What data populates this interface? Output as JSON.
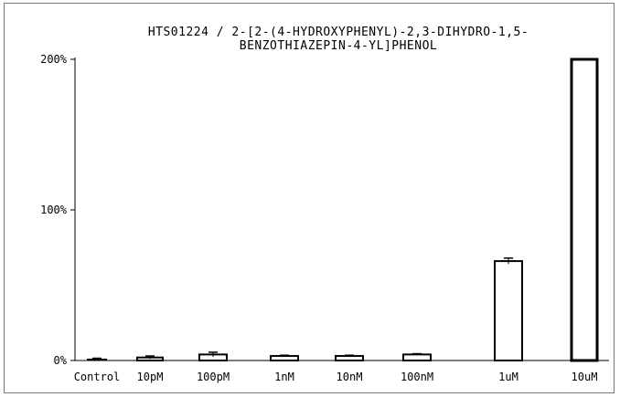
{
  "chart_data": {
    "type": "bar",
    "title": "HTS01224 / 2-[2-(4-HYDROXYPHENYL)-2,3-DIHYDRO-1,5-BENZOTHIAZEPIN-4-YL]PHENOL",
    "title_lines": [
      "HTS01224 / 2-[2-(4-HYDROXYPHENYL)-2,3-DIHYDRO-1,5-",
      "BENZOTHIAZEPIN-4-YL]PHENOL"
    ],
    "xlabel": "",
    "ylabel": "",
    "categories": [
      "Control",
      "10pM",
      "100pM",
      "1nM",
      "10nM",
      "100nM",
      "1uM",
      "10uM"
    ],
    "values": [
      0,
      2,
      4,
      3,
      3,
      4,
      66,
      200
    ],
    "errors": [
      1.5,
      1,
      1.5,
      0.5,
      0.5,
      0.5,
      2,
      0
    ],
    "ylim": [
      0,
      200
    ],
    "yticks": [
      {
        "value": 0,
        "label": "0%"
      },
      {
        "value": 100,
        "label": "100%"
      },
      {
        "value": 200,
        "label": "200%"
      }
    ],
    "grid": false,
    "bar_color": "#ffffff",
    "bar_stroke": "#000000"
  }
}
